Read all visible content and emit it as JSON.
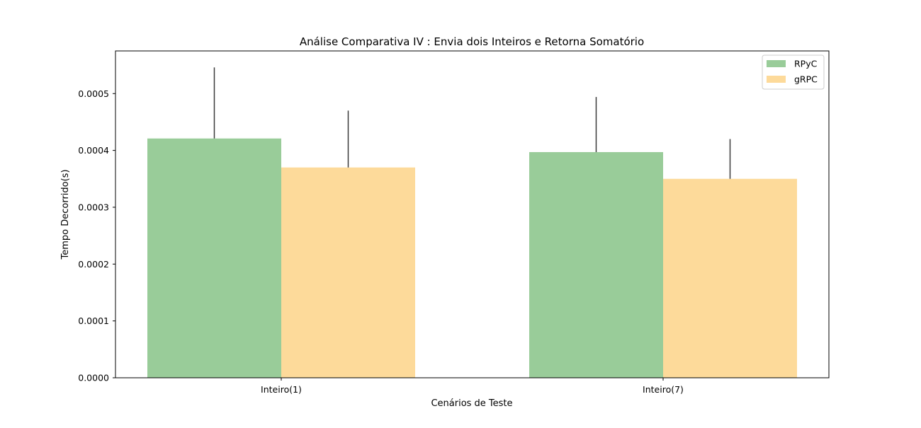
{
  "chart_data": {
    "type": "bar",
    "title": "Análise Comparativa IV : Envia dois Inteiros e Retorna Somatório",
    "xlabel": "Cenários de Teste",
    "ylabel": "Tempo Decorrido(s)",
    "categories": [
      "Inteiro(1)",
      "Inteiro(7)"
    ],
    "series": [
      {
        "name": "RPyC",
        "color": "#99cc99",
        "values": [
          0.000421,
          0.000397
        ],
        "error": [
          0.000125,
          9.7e-05
        ]
      },
      {
        "name": "gRPC",
        "color": "#fdda9a",
        "values": [
          0.00037,
          0.00035
        ],
        "error": [
          0.0001,
          7e-05
        ]
      }
    ],
    "ylim": [
      0,
      0.000575
    ],
    "yticks": [
      "0.0000",
      "0.0001",
      "0.0002",
      "0.0003",
      "0.0004",
      "0.0005"
    ],
    "grid": false,
    "legend_position": "top-right",
    "error_bar_color": "#3a3a3a"
  }
}
